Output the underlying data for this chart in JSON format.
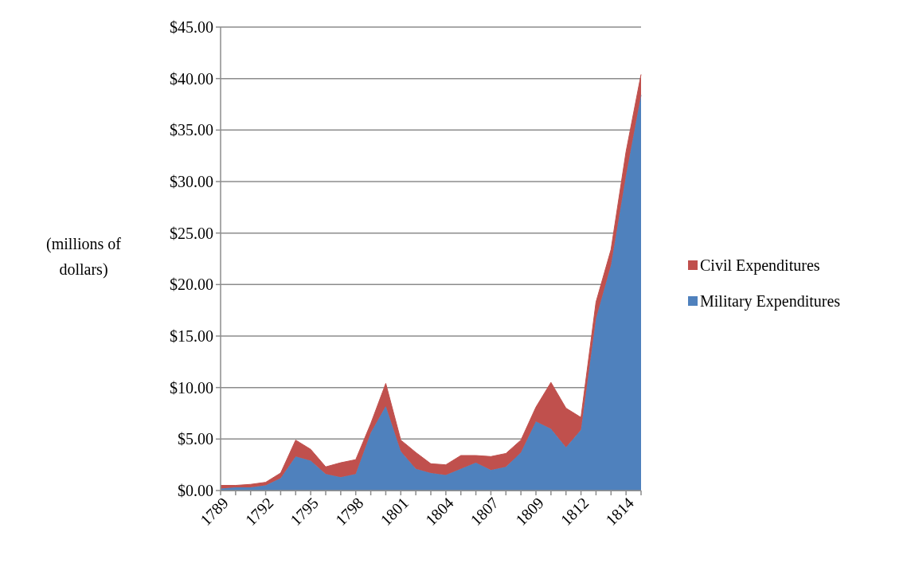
{
  "chart_data": {
    "type": "area",
    "stacked": true,
    "ylabel": "(millions of dollars)",
    "categories": [
      "1789",
      null,
      null,
      "1792",
      null,
      null,
      "1795",
      null,
      null,
      "1798",
      null,
      null,
      "1801",
      null,
      null,
      "1804",
      null,
      null,
      "1807",
      null,
      null,
      "1809",
      null,
      null,
      "1812",
      null,
      null,
      "1814",
      null
    ],
    "series": [
      {
        "name": "Military Expenditures",
        "color": "#4f81bd",
        "values": [
          0.2,
          0.3,
          0.3,
          0.5,
          1.2,
          3.3,
          2.9,
          1.6,
          1.3,
          1.6,
          5.6,
          8.2,
          3.8,
          2.1,
          1.7,
          1.5,
          2.1,
          2.7,
          2.0,
          2.3,
          3.7,
          6.7,
          6.0,
          4.2,
          5.9,
          16.7,
          21.9,
          30.6,
          38.4
        ]
      },
      {
        "name": "Civil Expenditures",
        "color": "#c0504d",
        "values": [
          0.3,
          0.2,
          0.3,
          0.3,
          0.5,
          1.6,
          1.1,
          0.7,
          1.4,
          1.4,
          0.9,
          2.2,
          1.1,
          1.6,
          0.9,
          1.0,
          1.3,
          0.7,
          1.3,
          1.3,
          1.2,
          1.4,
          4.5,
          3.8,
          1.2,
          1.6,
          1.5,
          2.3,
          2.0
        ]
      }
    ],
    "ylim": [
      0,
      45
    ],
    "yticks": [
      {
        "value": 0,
        "label": "$0.00"
      },
      {
        "value": 5,
        "label": "$5.00"
      },
      {
        "value": 10,
        "label": "$10.00"
      },
      {
        "value": 15,
        "label": "$15.00"
      },
      {
        "value": 20,
        "label": "$20.00"
      },
      {
        "value": 25,
        "label": "$25.00"
      },
      {
        "value": 30,
        "label": "$30.00"
      },
      {
        "value": 35,
        "label": "$35.00"
      },
      {
        "value": 40,
        "label": "$40.00"
      },
      {
        "value": 45,
        "label": "$45.00"
      }
    ],
    "grid": "y",
    "legend": "right"
  }
}
